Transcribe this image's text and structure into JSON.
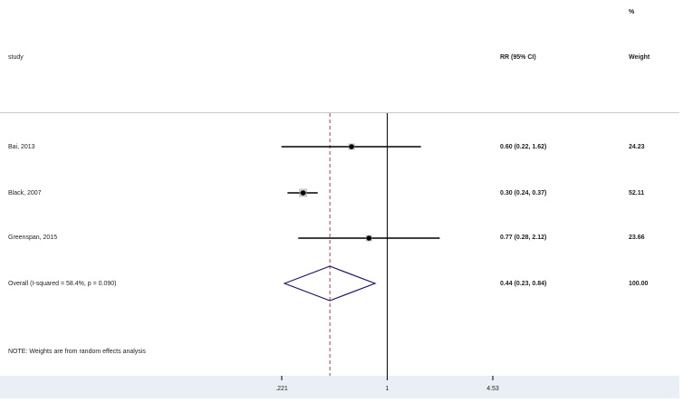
{
  "header": {
    "study_label": "study",
    "effect_label": "RR (95% CI)",
    "weight_label": "Weight",
    "weight_unit": "%"
  },
  "note": "NOTE: Weights are from random effects analysis",
  "colors": {
    "ci_line": "#000000",
    "point": "#000000",
    "weight_box": "#9a9a9a",
    "diamond": "#1d1a6b",
    "dashed_line": "#a0424a",
    "footer_bg": "#e9eff5"
  },
  "chart_data": {
    "type": "forest",
    "title": "",
    "xlabel": "",
    "ylabel": "",
    "x_scale": "log",
    "x_ticks": [
      0.221,
      1,
      4.53
    ],
    "x_tick_labels": [
      ".221",
      "1",
      "4.53"
    ],
    "null_line": 1,
    "overall_line": 0.44,
    "studies": [
      {
        "name": "Bai, 2013",
        "rr": 0.6,
        "lower": 0.22,
        "upper": 1.62,
        "ci_text": "0.60 (0.22, 1.62)",
        "weight": 24.23,
        "weight_text": "24.23"
      },
      {
        "name": "Black, 2007",
        "rr": 0.3,
        "lower": 0.24,
        "upper": 0.37,
        "ci_text": "0.30 (0.24, 0.37)",
        "weight": 52.11,
        "weight_text": "52.11"
      },
      {
        "name": "Greenspan, 2015",
        "rr": 0.77,
        "lower": 0.28,
        "upper": 2.12,
        "ci_text": "0.77 (0.28, 2.12)",
        "weight": 23.66,
        "weight_text": "23.66"
      }
    ],
    "overall": {
      "name": "Overall  (I-squared = 58.4%, p = 0.090)",
      "rr": 0.44,
      "lower": 0.23,
      "upper": 0.84,
      "ci_text": "0.44 (0.23, 0.84)",
      "weight": 100.0,
      "weight_text": "100.00"
    }
  }
}
